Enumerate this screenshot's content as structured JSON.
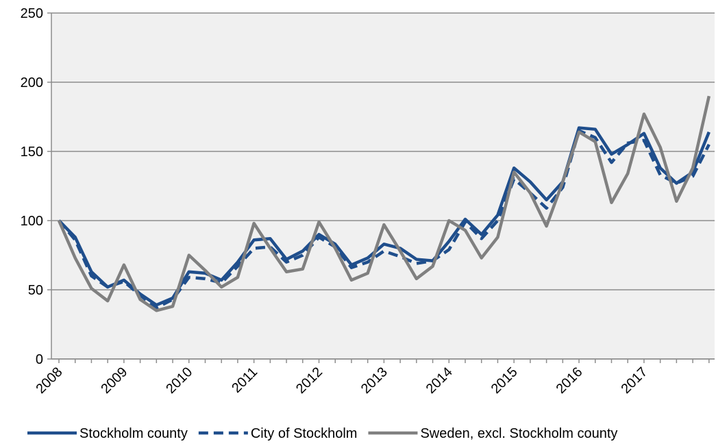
{
  "chart_data": {
    "type": "line",
    "categories": [
      "2008",
      null,
      null,
      null,
      "2009",
      null,
      null,
      null,
      "2010",
      null,
      null,
      null,
      "2011",
      null,
      null,
      null,
      "2012",
      null,
      null,
      null,
      "2013",
      null,
      null,
      null,
      "2014",
      null,
      null,
      null,
      "2015",
      null,
      null,
      null,
      "2016",
      null,
      null,
      null,
      "2017",
      null,
      null,
      null,
      null
    ],
    "series": [
      {
        "name": "Stockholm county",
        "color": "#1f4e8c",
        "dashed": false,
        "values": [
          100,
          88,
          63,
          52,
          57,
          47,
          39,
          44,
          63,
          62,
          57,
          70,
          86,
          87,
          72,
          78,
          90,
          83,
          68,
          73,
          83,
          80,
          72,
          71,
          85,
          101,
          90,
          104,
          138,
          128,
          115,
          128,
          167,
          166,
          148,
          155,
          163,
          138,
          127,
          135,
          164
        ]
      },
      {
        "name": "City of Stockholm",
        "color": "#1f4e8c",
        "dashed": true,
        "values": [
          100,
          86,
          60,
          52,
          56,
          46,
          37,
          43,
          59,
          58,
          55,
          67,
          80,
          81,
          70,
          75,
          88,
          81,
          66,
          70,
          78,
          74,
          69,
          71,
          79,
          99,
          87,
          100,
          130,
          120,
          109,
          124,
          165,
          160,
          142,
          156,
          158,
          133,
          127,
          132,
          155
        ]
      },
      {
        "name": "Sweden, excl. Stockholm county",
        "color": "#808080",
        "dashed": false,
        "values": [
          100,
          73,
          51,
          42,
          68,
          43,
          35,
          38,
          75,
          64,
          52,
          59,
          98,
          80,
          63,
          65,
          99,
          80,
          57,
          62,
          97,
          78,
          58,
          67,
          100,
          93,
          73,
          88,
          135,
          120,
          96,
          128,
          164,
          157,
          113,
          134,
          177,
          153,
          114,
          138,
          190
        ]
      }
    ],
    "ylim": [
      0,
      250
    ],
    "yticks": [
      0,
      50,
      100,
      150,
      200,
      250
    ],
    "grid": true,
    "legend": "bottom"
  }
}
